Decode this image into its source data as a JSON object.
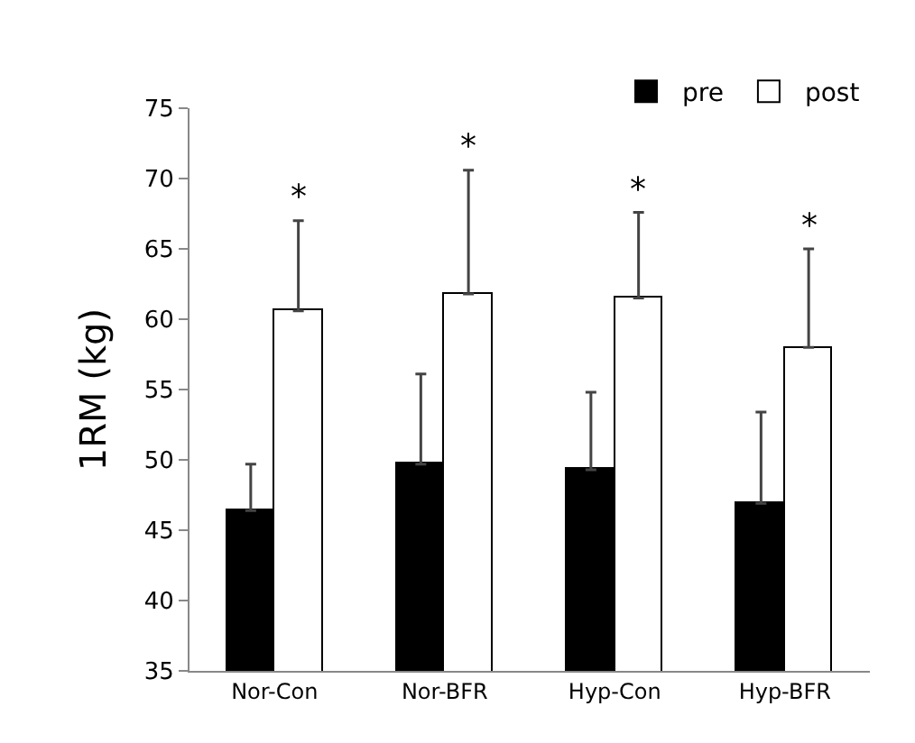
{
  "chart_data": {
    "type": "bar",
    "ylabel": "1RM (kg)",
    "categories": [
      "Nor-Con",
      "Nor-BFR",
      "Hyp-Con",
      "Hyp-BFR"
    ],
    "series": [
      {
        "name": "pre",
        "color": "#000000",
        "values": [
          46.4,
          49.7,
          49.3,
          46.9
        ],
        "errors": [
          [
            46.4,
            49.7
          ],
          [
            49.7,
            56.1
          ],
          [
            49.3,
            54.8
          ],
          [
            46.9,
            53.4
          ]
        ]
      },
      {
        "name": "post",
        "color": "#ffffff",
        "values": [
          60.6,
          61.8,
          61.5,
          58.0
        ],
        "errors": [
          [
            60.6,
            67.0
          ],
          [
            61.8,
            70.6
          ],
          [
            61.5,
            67.6
          ],
          [
            58.0,
            65.0
          ]
        ]
      }
    ],
    "ylim": [
      35,
      75
    ],
    "yticks": [
      35,
      40,
      45,
      50,
      55,
      60,
      65,
      70,
      75
    ],
    "legend": "top right",
    "annotations": [
      "*",
      "*",
      "*",
      "*"
    ]
  }
}
